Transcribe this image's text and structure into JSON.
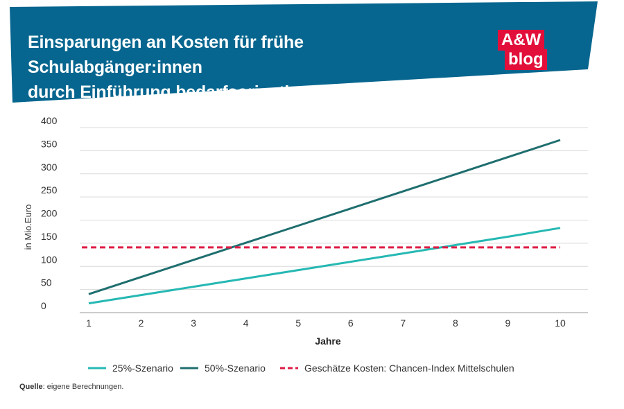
{
  "header": {
    "title_line1": "Einsparungen an Kosten für frühe Schulabgänger:innen",
    "title_line2": "durch Einführung bedarfsorientierter Mittelverteilung",
    "logo_line1": "A&W",
    "logo_line2": "blog"
  },
  "colors": {
    "header_bg": "#07668f",
    "logo_bg": "#e20f3a",
    "series_25": "#26b8b3",
    "series_50": "#1f6e6f",
    "cost_line": "#de1b45",
    "grid": "#d9d9d9"
  },
  "chart_data": {
    "type": "line",
    "xlabel": "Jahre",
    "ylabel": "in Mio.Euro",
    "x": [
      1,
      2,
      3,
      4,
      5,
      6,
      7,
      8,
      9,
      10
    ],
    "x_ticks": [
      "1",
      "2",
      "3",
      "4",
      "5",
      "6",
      "7",
      "8",
      "9",
      "10"
    ],
    "y_ticks": [
      "0",
      "50",
      "100",
      "150",
      "200",
      "250",
      "300",
      "350",
      "400"
    ],
    "ylim": [
      0,
      400
    ],
    "grid": "horizontal",
    "series": [
      {
        "name": "25%-Szenario",
        "values": [
          20,
          38,
          56,
          74,
          92,
          110,
          128,
          146,
          164,
          183
        ],
        "style": "solid"
      },
      {
        "name": "50%-Szenario",
        "values": [
          40,
          77,
          114,
          151,
          188,
          225,
          262,
          299,
          336,
          373
        ],
        "style": "solid"
      },
      {
        "name": "Geschätze Kosten: Chancen-Index Mittelschulen",
        "values": [
          141,
          141,
          141,
          141,
          141,
          141,
          141,
          141,
          141,
          141
        ],
        "style": "dashed"
      }
    ],
    "legend_position": "bottom"
  },
  "source": {
    "label": "Quelle",
    "text": ": eigene Berechnungen."
  }
}
